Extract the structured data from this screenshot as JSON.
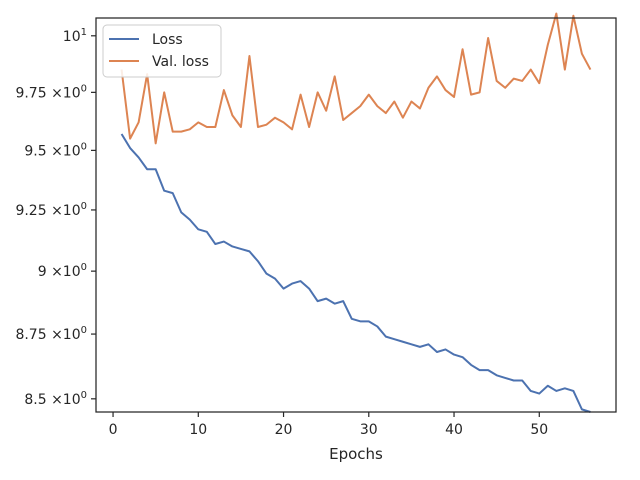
{
  "chart_data": {
    "type": "line",
    "title": "",
    "xlabel": "Epochs",
    "ylabel": "",
    "y_scale": "log",
    "xlim": [
      -2,
      59
    ],
    "ylim": [
      8.45,
      10.08
    ],
    "grid": false,
    "legend_position": "top-left",
    "x_ticks": [
      {
        "value": 0,
        "label": "0"
      },
      {
        "value": 10,
        "label": "10"
      },
      {
        "value": 20,
        "label": "20"
      },
      {
        "value": 30,
        "label": "30"
      },
      {
        "value": 40,
        "label": "40"
      },
      {
        "value": 50,
        "label": "50"
      }
    ],
    "y_ticks": [
      {
        "value": 8.5,
        "base": "8.5",
        "mult": "×10",
        "exp": "0"
      },
      {
        "value": 8.75,
        "base": "8.75",
        "mult": "×10",
        "exp": "0"
      },
      {
        "value": 9.0,
        "base": "9",
        "mult": "×10",
        "exp": "0"
      },
      {
        "value": 9.25,
        "base": "9.25",
        "mult": "×10",
        "exp": "0"
      },
      {
        "value": 9.5,
        "base": "9.5",
        "mult": "×10",
        "exp": "0"
      },
      {
        "value": 9.75,
        "base": "9.75",
        "mult": "×10",
        "exp": "0"
      },
      {
        "value": 10.0,
        "base": "10",
        "mult": "",
        "exp": "1"
      }
    ],
    "x": [
      1,
      2,
      3,
      4,
      5,
      6,
      7,
      8,
      9,
      10,
      11,
      12,
      13,
      14,
      15,
      16,
      17,
      18,
      19,
      20,
      21,
      22,
      23,
      24,
      25,
      26,
      27,
      28,
      29,
      30,
      31,
      32,
      33,
      34,
      35,
      36,
      37,
      38,
      39,
      40,
      41,
      42,
      43,
      44,
      45,
      46,
      47,
      48,
      49,
      50,
      51,
      52,
      53,
      54,
      55,
      56
    ],
    "series": [
      {
        "name": "Loss",
        "color": "#4c72b0",
        "values": [
          9.57,
          9.51,
          9.47,
          9.42,
          9.42,
          9.33,
          9.32,
          9.24,
          9.21,
          9.17,
          9.16,
          9.11,
          9.12,
          9.1,
          9.09,
          9.08,
          9.04,
          8.99,
          8.97,
          8.93,
          8.95,
          8.96,
          8.93,
          8.88,
          8.89,
          8.87,
          8.88,
          8.81,
          8.8,
          8.8,
          8.78,
          8.74,
          8.73,
          8.72,
          8.71,
          8.7,
          8.71,
          8.68,
          8.69,
          8.67,
          8.66,
          8.63,
          8.61,
          8.61,
          8.59,
          8.58,
          8.57,
          8.57,
          8.53,
          8.52,
          8.55,
          8.53,
          8.54,
          8.53,
          8.46,
          8.45
        ]
      },
      {
        "name": "Val. loss",
        "color": "#dd8452",
        "values": [
          9.85,
          9.55,
          9.62,
          9.83,
          9.53,
          9.75,
          9.58,
          9.58,
          9.59,
          9.62,
          9.6,
          9.6,
          9.76,
          9.65,
          9.6,
          9.91,
          9.6,
          9.61,
          9.64,
          9.62,
          9.59,
          9.74,
          9.6,
          9.75,
          9.67,
          9.82,
          9.63,
          9.66,
          9.69,
          9.74,
          9.69,
          9.66,
          9.71,
          9.64,
          9.71,
          9.68,
          9.77,
          9.82,
          9.76,
          9.73,
          9.94,
          9.74,
          9.75,
          9.99,
          9.8,
          9.77,
          9.81,
          9.8,
          9.85,
          9.79,
          9.96,
          10.1,
          9.85,
          10.09,
          9.92,
          9.85
        ]
      }
    ]
  }
}
